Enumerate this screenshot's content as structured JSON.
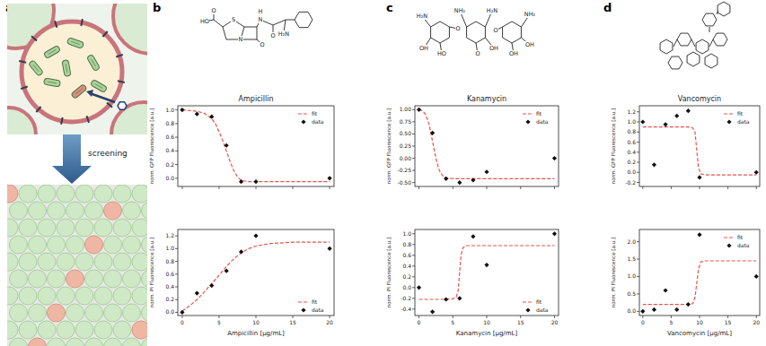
{
  "panel_labels": [
    "a",
    "b",
    "c",
    "d"
  ],
  "screening_label": "screening",
  "structure_b_labels": [
    "HO",
    "O",
    "S",
    "N",
    "O",
    "H",
    "N",
    "O",
    "H₂N"
  ],
  "structure_c_labels": [
    "H₂N",
    "OH",
    "HO",
    "O",
    "NH₂",
    "O",
    "H₂N",
    "OH",
    "O",
    "OH",
    "OH",
    "NH₂"
  ],
  "chart_data": [
    {
      "type": "scatter",
      "title": "Ampicillin",
      "ylabel": "norm. GFP Fluorescence [a.u.]",
      "xlim": [
        -0.6,
        20.6
      ],
      "xticks": [
        0,
        5,
        10,
        15,
        20
      ],
      "ylim": [
        -0.12,
        1.06
      ],
      "yticks": [
        {
          "value": 0,
          "label": "0.0"
        },
        0.2,
        0.4,
        0.6,
        0.8,
        {
          "value": 1,
          "label": "1.0"
        }
      ],
      "tick_labels": "y",
      "legend": "upper right",
      "series": [
        {
          "name": "fit",
          "type": "line",
          "line_style": "dashed",
          "color": "#e8534e",
          "x": [
            0,
            2,
            3,
            4,
            4.5,
            5,
            5.5,
            6,
            6.5,
            7,
            7.5,
            8,
            9,
            10,
            15,
            20
          ],
          "values": [
            1.0,
            0.98,
            0.95,
            0.87,
            0.8,
            0.68,
            0.55,
            0.4,
            0.24,
            0.11,
            0.02,
            -0.03,
            -0.05,
            -0.05,
            -0.05,
            -0.05
          ]
        },
        {
          "name": "data",
          "type": "scatter",
          "marker": "diamond",
          "color": "#111111",
          "x": [
            0,
            2,
            4,
            6,
            8,
            10,
            20
          ],
          "values": [
            1.0,
            0.94,
            0.9,
            0.48,
            -0.05,
            -0.05,
            0.0
          ]
        }
      ]
    },
    {
      "type": "scatter",
      "xlabel": "Ampicillin [μg/mL]",
      "ylabel": "norm. PI Fluorescence [a.u.]",
      "xlim": [
        -0.6,
        20.6
      ],
      "xticks": [
        0,
        5,
        10,
        15,
        20
      ],
      "ylim": [
        -0.05,
        1.3
      ],
      "yticks": [
        {
          "value": 0,
          "label": "0.0"
        },
        0.2,
        0.4,
        0.6,
        0.8,
        {
          "value": 1,
          "label": "1.0"
        },
        1.2
      ],
      "legend": "lower right",
      "series": [
        {
          "name": "fit",
          "type": "line",
          "line_style": "dashed",
          "color": "#e8534e",
          "x": [
            0,
            1,
            2,
            3,
            4,
            5,
            6,
            7,
            8,
            9,
            10,
            12,
            15,
            20
          ],
          "values": [
            0.02,
            0.1,
            0.2,
            0.32,
            0.45,
            0.58,
            0.72,
            0.84,
            0.93,
            1.0,
            1.04,
            1.08,
            1.1,
            1.1
          ]
        },
        {
          "name": "data",
          "type": "scatter",
          "marker": "diamond",
          "color": "#111111",
          "x": [
            0,
            2,
            4,
            6,
            8,
            10,
            20
          ],
          "values": [
            0.0,
            0.3,
            0.42,
            0.65,
            0.95,
            1.2,
            1.0
          ]
        }
      ]
    },
    {
      "type": "scatter",
      "title": "Kanamycin",
      "ylabel": "norm. GFP Fluorescence [a.u.]",
      "xlim": [
        -0.6,
        20.6
      ],
      "xticks": [
        0,
        5,
        10,
        15,
        20
      ],
      "ylim": [
        -0.58,
        1.08
      ],
      "yticks": [
        {
          "value": -0.5,
          "label": "-0.50"
        },
        -0.25,
        {
          "value": 0,
          "label": "0.00"
        },
        0.25,
        {
          "value": 0.5,
          "label": "0.50"
        },
        0.75,
        {
          "value": 1,
          "label": "1.00"
        }
      ],
      "tick_labels": "y",
      "legend": "upper right",
      "series": [
        {
          "name": "fit",
          "type": "line",
          "line_style": "dashed",
          "color": "#e8534e",
          "x": [
            0,
            0.5,
            1,
            1.5,
            2,
            2.5,
            3,
            3.5,
            4,
            5,
            10,
            20
          ],
          "values": [
            1.0,
            0.98,
            0.9,
            0.7,
            0.35,
            0.0,
            -0.25,
            -0.36,
            -0.4,
            -0.42,
            -0.42,
            -0.42
          ]
        },
        {
          "name": "data",
          "type": "scatter",
          "marker": "diamond",
          "color": "#111111",
          "x": [
            0,
            2,
            4,
            6,
            8,
            10,
            20
          ],
          "values": [
            1.0,
            0.52,
            -0.42,
            -0.5,
            -0.45,
            -0.28,
            0.0
          ]
        }
      ]
    },
    {
      "type": "scatter",
      "xlabel": "Kanamycin [μg/mL]",
      "ylabel": "norm. PI Fluorescence [a.u.]",
      "xlim": [
        -0.6,
        20.6
      ],
      "xticks": [
        0,
        5,
        10,
        15,
        20
      ],
      "ylim": [
        -0.52,
        1.08
      ],
      "yticks": [
        -0.4,
        -0.2,
        {
          "value": 0,
          "label": "0.0"
        },
        0.2,
        0.4,
        0.6,
        0.8,
        {
          "value": 1,
          "label": "1.0"
        }
      ],
      "legend": "lower right",
      "series": [
        {
          "name": "fit",
          "type": "line",
          "line_style": "dashed",
          "color": "#e8534e",
          "x": [
            0,
            4,
            5,
            5.5,
            5.8,
            6,
            6.2,
            6.5,
            7,
            10,
            20
          ],
          "values": [
            -0.22,
            -0.22,
            -0.21,
            -0.18,
            -0.05,
            0.28,
            0.6,
            0.74,
            0.78,
            0.78,
            0.78
          ]
        },
        {
          "name": "data",
          "type": "scatter",
          "marker": "diamond",
          "color": "#111111",
          "x": [
            0,
            2,
            4,
            6,
            8,
            10,
            20
          ],
          "values": [
            0.0,
            -0.45,
            -0.22,
            -0.2,
            0.95,
            0.42,
            1.0
          ]
        }
      ]
    },
    {
      "type": "scatter",
      "title": "Vancomycin",
      "ylabel": "norm. GFP Fluorescence [a.u.]",
      "xlim": [
        -0.6,
        20.6
      ],
      "xticks": [
        0,
        5,
        10,
        15,
        20
      ],
      "ylim": [
        -0.28,
        1.32
      ],
      "yticks": [
        -0.2,
        {
          "value": 0,
          "label": "0.0"
        },
        0.2,
        0.4,
        0.6,
        0.8,
        {
          "value": 1,
          "label": "1.0"
        },
        1.2
      ],
      "tick_labels": "y",
      "legend": "upper right",
      "series": [
        {
          "name": "fit",
          "type": "line",
          "line_style": "dashed",
          "color": "#e8534e",
          "x": [
            0,
            8,
            8.8,
            9.2,
            9.5,
            9.8,
            10.2,
            11,
            20
          ],
          "values": [
            0.9,
            0.9,
            0.88,
            0.8,
            0.45,
            0.1,
            -0.03,
            -0.05,
            -0.05
          ]
        },
        {
          "name": "data",
          "type": "scatter",
          "marker": "diamond",
          "color": "#111111",
          "x": [
            0,
            2,
            4,
            6,
            8,
            10,
            20
          ],
          "values": [
            1.0,
            0.15,
            0.95,
            1.12,
            1.22,
            -0.1,
            0.0
          ]
        }
      ]
    },
    {
      "type": "scatter",
      "xlabel": "Vancomycin [μg/mL]",
      "ylabel": "norm. PI Fluorescence [a.u.]",
      "xlim": [
        -0.6,
        20.6
      ],
      "xticks": [
        0,
        5,
        10,
        15,
        20
      ],
      "ylim": [
        -0.12,
        2.35
      ],
      "yticks": [
        {
          "value": 0,
          "label": "0.0"
        },
        0.5,
        {
          "value": 1,
          "label": "1.0"
        },
        1.5,
        {
          "value": 2,
          "label": "2.0"
        }
      ],
      "legend": "upper right",
      "series": [
        {
          "name": "fit",
          "type": "line",
          "line_style": "dashed",
          "color": "#e8534e",
          "x": [
            0,
            8,
            8.8,
            9.2,
            9.5,
            9.8,
            10.2,
            11,
            20
          ],
          "values": [
            0.2,
            0.2,
            0.22,
            0.4,
            0.8,
            1.2,
            1.42,
            1.45,
            1.45
          ]
        },
        {
          "name": "data",
          "type": "scatter",
          "marker": "diamond",
          "color": "#111111",
          "x": [
            0,
            2,
            4,
            6,
            8,
            10,
            20
          ],
          "values": [
            0.0,
            0.05,
            0.6,
            0.05,
            0.2,
            2.2,
            1.0
          ]
        }
      ]
    }
  ]
}
